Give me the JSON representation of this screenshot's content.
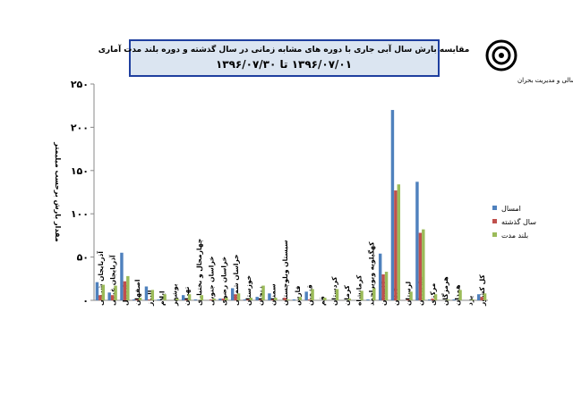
{
  "header": {
    "org": "مرکز ملی خشکسالی و مدیریت بحران"
  },
  "chart_data": {
    "type": "bar",
    "title": "مقایسه بارش سال آبی جاری با دوره های مشابه زمانی در سال گذشته و دوره بلند مدت آماری",
    "subtitle": "۱۳۹۶/۰۷/۰۱ تا ۱۳۹۶/۰۷/۳۰",
    "y_label": "مقدار بارش برحسب میلیمتر",
    "categories": [
      "آذربایجان شرقی",
      "آذربایجان غربی",
      "اردبیل",
      "اصفهان",
      "البرز",
      "ایلام",
      "بوشهر",
      "تهران",
      "چهارمحال و بختیاری",
      "خراسان جنوبی",
      "خراسان رضوی",
      "خراسان شمالی",
      "خوزستان",
      "زنجان",
      "سمنان",
      "سیستان وبلوچستان",
      "فارس",
      "قزوین",
      "قم",
      "کردستان",
      "کرمان",
      "کرمانشاه",
      "کهگیلویه وبویراحمد",
      "گلستان",
      "گیلان",
      "لرستان",
      "مازندران",
      "مرکزی",
      "هرمزگان",
      "همدان",
      "یزد",
      "کل کشور"
    ],
    "series": [
      {
        "name": "امسال",
        "color": "#4f81bd",
        "values": [
          21,
          9,
          55,
          1,
          16,
          1,
          0,
          6,
          1,
          0,
          2,
          14,
          1,
          4,
          8,
          0,
          1,
          10,
          0,
          0,
          0,
          0,
          1,
          54,
          220,
          0,
          137,
          1,
          0,
          1,
          0,
          7
        ]
      },
      {
        "name": "سال گذشته",
        "color": "#c0504d",
        "values": [
          6,
          6,
          22,
          1,
          1,
          0,
          0,
          1,
          0,
          1,
          2,
          7,
          1,
          1,
          1,
          3,
          0,
          1,
          0,
          0,
          0,
          0,
          0,
          30,
          127,
          1,
          78,
          2,
          0,
          0,
          0,
          4
        ]
      },
      {
        "name": "بلند مدت",
        "color": "#9bbb59",
        "values": [
          18,
          17,
          28,
          3,
          12,
          7,
          2,
          7,
          6,
          2,
          3,
          8,
          3,
          17,
          3,
          1,
          4,
          13,
          3,
          13,
          2,
          11,
          14,
          33,
          134,
          10,
          82,
          7,
          1,
          12,
          1,
          8
        ]
      }
    ],
    "ylim": [
      0,
      250
    ],
    "yticks": [
      {
        "value": 0,
        "label": "۰"
      },
      {
        "value": 50,
        "label": "۵۰"
      },
      {
        "value": 100,
        "label": "۱۰۰"
      },
      {
        "value": 150,
        "label": "۱۵۰"
      },
      {
        "value": 200,
        "label": "۲۰۰"
      },
      {
        "value": 250,
        "label": "۲۵۰"
      }
    ],
    "legend": "right"
  }
}
